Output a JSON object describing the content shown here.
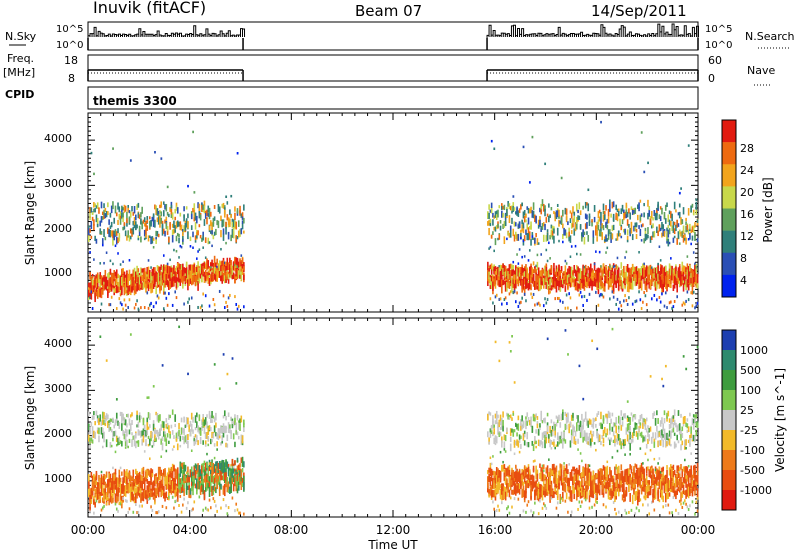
{
  "header": {
    "station": "Inuvik (fitACF)",
    "beam": "Beam 07",
    "date": "14/Sep/2011"
  },
  "status_panel": {
    "left_labels": [
      "N.Sky",
      "Freq.",
      "[MHz]",
      "CPID"
    ],
    "right_labels": [
      "N.Search",
      "Nave"
    ],
    "nsky_ticks": [
      "10^5",
      "10^0"
    ],
    "nsearch_ticks": [
      "10^5",
      "10^0"
    ],
    "freq_ticks": [
      "18",
      "8"
    ],
    "nave_ticks": [
      "60",
      "0"
    ],
    "cpid_text": "themis 3300"
  },
  "x_axis": {
    "label": "Time UT",
    "ticks": [
      "00:00",
      "04:00",
      "08:00",
      "12:00",
      "16:00",
      "20:00",
      "00:00"
    ]
  },
  "chart_data": [
    {
      "type": "heatmap",
      "title": "",
      "ylabel": "Slant Range [km]",
      "xlabel": "Time UT",
      "xlim": [
        0,
        24
      ],
      "ylim": [
        200,
        4600
      ],
      "yticks": [
        "1000",
        "2000",
        "3000",
        "4000"
      ],
      "colorbar": {
        "label": "Power [dB]",
        "ticks": [
          "4",
          "8",
          "12",
          "16",
          "20",
          "24",
          "28"
        ],
        "colors": [
          "#0022ee",
          "#2a4fb5",
          "#2f7f7a",
          "#5fa05c",
          "#c8d84a",
          "#f2a41c",
          "#ee6a10",
          "#e21b10"
        ]
      },
      "data_windows_hours": [
        [
          0,
          6.1
        ],
        [
          15.7,
          24
        ]
      ],
      "dominant_echo_bands_km": [
        [
          800,
          1200
        ],
        [
          1800,
          2600
        ]
      ]
    },
    {
      "type": "heatmap",
      "title": "",
      "ylabel": "Slant Range [km]",
      "xlabel": "Time UT",
      "xlim": [
        0,
        24
      ],
      "ylim": [
        200,
        4600
      ],
      "yticks": [
        "1000",
        "2000",
        "3000",
        "4000"
      ],
      "colorbar": {
        "label": "Velocity [m s^-1]",
        "ticks": [
          "1000",
          "500",
          "100",
          "25",
          "-25",
          "-100",
          "-500",
          "-1000"
        ],
        "colors": [
          "#1d3fb0",
          "#2e8a6e",
          "#3e9c3e",
          "#7ec850",
          "#c8c8c8",
          "#f2ba2a",
          "#ee7a1a",
          "#e84d10",
          "#e01a10"
        ]
      },
      "data_windows_hours": [
        [
          0,
          6.1
        ],
        [
          15.7,
          24
        ]
      ],
      "dominant_echo_bands_km": [
        [
          700,
          1300
        ],
        [
          1800,
          2500
        ]
      ]
    }
  ]
}
